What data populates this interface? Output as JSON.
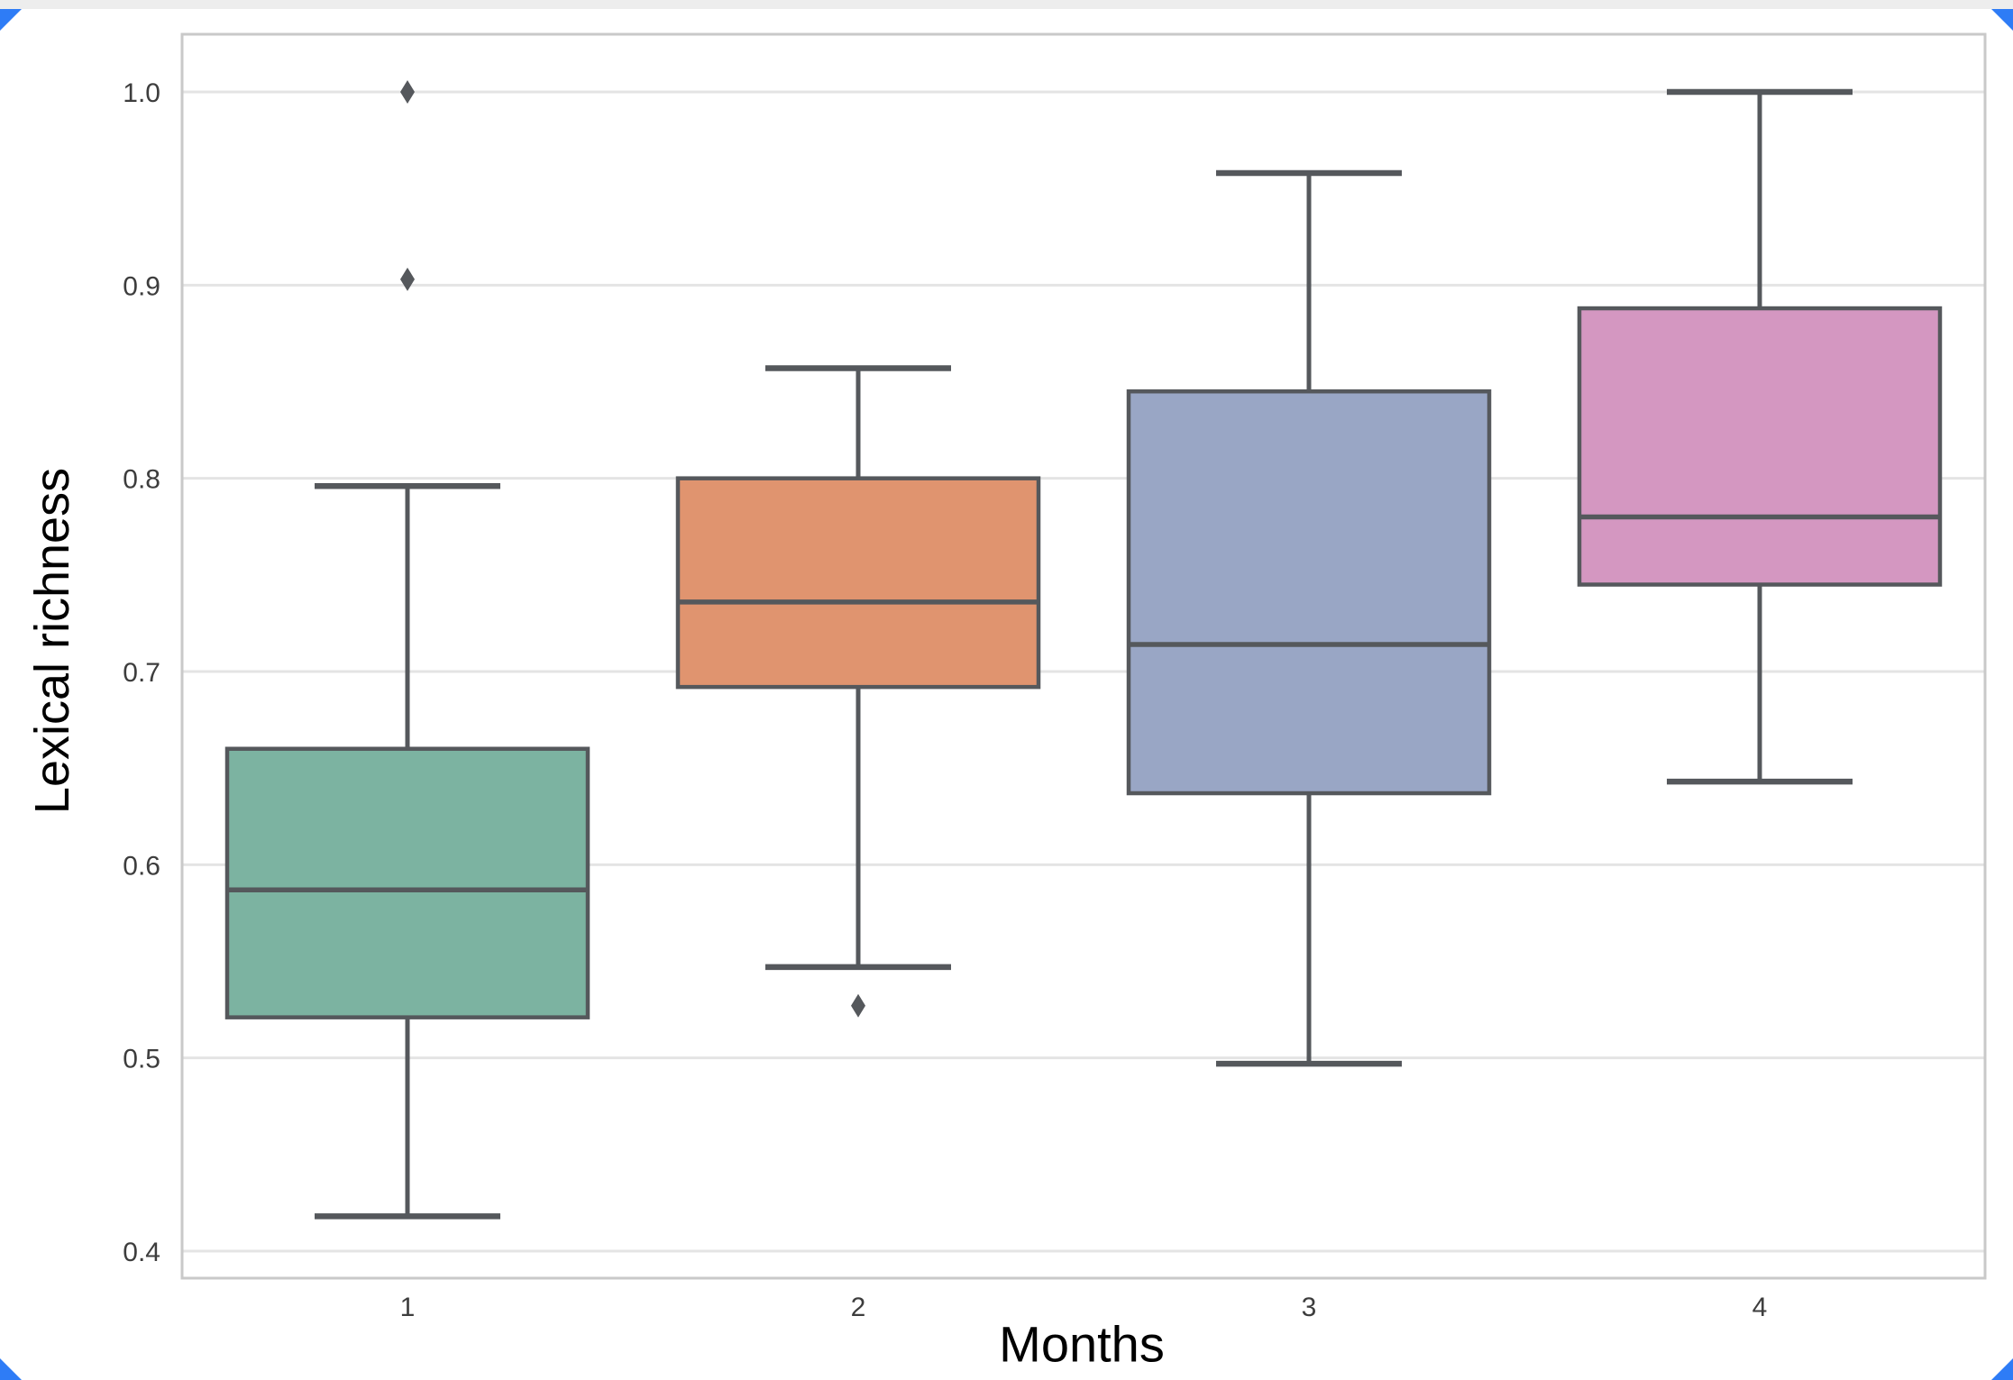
{
  "figure": {
    "background": "#ffffff",
    "top_strip_color": "#ededed",
    "corner_marker_color": "#2e7cf6"
  },
  "chart_data": {
    "type": "boxplot",
    "title": "",
    "xlabel": "Months",
    "ylabel": "Lexical richness",
    "categories": [
      "1",
      "2",
      "3",
      "4"
    ],
    "ylim": [
      0.37,
      1.03
    ],
    "yticks": [
      1.0,
      0.9,
      0.8,
      0.7,
      0.6,
      0.5,
      0.4
    ],
    "ytick_labels": [
      "1.0",
      "0.9",
      "0.8",
      "0.7",
      "0.6",
      "0.5",
      "0.4"
    ],
    "grid": "horizontal",
    "legend": "none",
    "series": [
      {
        "category": "1",
        "color": "#7cb3a1",
        "whisker_low": 0.418,
        "q1": 0.521,
        "median": 0.587,
        "q3": 0.66,
        "whisker_high": 0.796,
        "outliers": [
          1.0,
          0.903
        ]
      },
      {
        "category": "2",
        "color": "#e0946f",
        "whisker_low": 0.547,
        "q1": 0.692,
        "median": 0.736,
        "q3": 0.8,
        "whisker_high": 0.857,
        "outliers": [
          0.527
        ]
      },
      {
        "category": "3",
        "color": "#99a6c5",
        "whisker_low": 0.497,
        "q1": 0.637,
        "median": 0.714,
        "q3": 0.845,
        "whisker_high": 0.958,
        "outliers": []
      },
      {
        "category": "4",
        "color": "#d497c1",
        "whisker_low": 0.643,
        "q1": 0.745,
        "median": 0.78,
        "q3": 0.888,
        "whisker_high": 1.0,
        "outliers": []
      }
    ],
    "box_line_color": "#55585c",
    "outlier_color": "#55585c",
    "grid_color": "#e4e4e4",
    "spine_color": "#c9c9c9",
    "tick_label_color": "#3d3d3d",
    "axis_label_color": "#000000"
  }
}
